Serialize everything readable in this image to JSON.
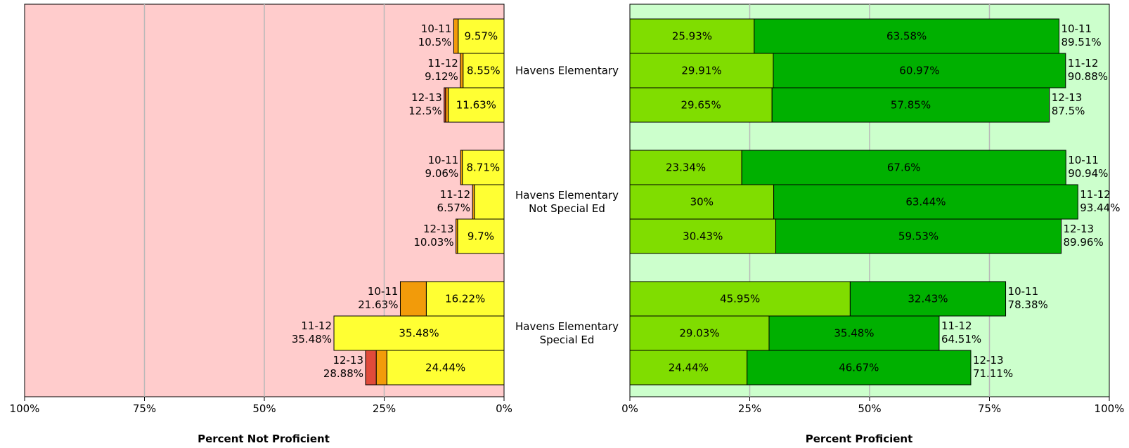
{
  "chart_data": [
    {
      "type": "bar",
      "orientation": "horizontal",
      "stacked": true,
      "direction": "right-to-left",
      "xlabel": "Percent Not Proficient",
      "xlim": [
        0,
        100
      ],
      "xticks": [
        "100%",
        "75%",
        "50%",
        "25%",
        "0%"
      ],
      "background": "#ffcccc",
      "grid": true,
      "segment_colors": [
        "#ffff33",
        "#f29b0a",
        "#e04a3a"
      ],
      "groups": [
        "Havens Elementary",
        "Havens Elementary Not Special Ed",
        "Havens Elementary Special Ed"
      ],
      "bars": [
        {
          "group": 0,
          "year": "10-11",
          "total": "10.5%",
          "segments": [
            9.57,
            0.93,
            0
          ],
          "inside_label": "9.57%"
        },
        {
          "group": 0,
          "year": "11-12",
          "total": "9.12%",
          "segments": [
            8.55,
            0.57,
            0
          ],
          "inside_label": "8.55%"
        },
        {
          "group": 0,
          "year": "12-13",
          "total": "12.5%",
          "segments": [
            11.63,
            0.57,
            0.3
          ],
          "inside_label": "11.63%"
        },
        {
          "group": 1,
          "year": "10-11",
          "total": "9.06%",
          "segments": [
            8.71,
            0.35,
            0
          ],
          "inside_label": "8.71%"
        },
        {
          "group": 1,
          "year": "11-12",
          "total": "6.57%",
          "segments": [
            6.2,
            0.37,
            0
          ],
          "inside_label": ""
        },
        {
          "group": 1,
          "year": "12-13",
          "total": "10.03%",
          "segments": [
            9.7,
            0.33,
            0
          ],
          "inside_label": "9.7%"
        },
        {
          "group": 2,
          "year": "10-11",
          "total": "21.63%",
          "segments": [
            16.22,
            5.41,
            0
          ],
          "inside_label": "16.22%"
        },
        {
          "group": 2,
          "year": "11-12",
          "total": "35.48%",
          "segments": [
            35.48,
            0,
            0
          ],
          "inside_label": "35.48%"
        },
        {
          "group": 2,
          "year": "12-13",
          "total": "28.88%",
          "segments": [
            24.44,
            2.22,
            2.22
          ],
          "inside_label": "24.44%"
        }
      ]
    },
    {
      "type": "bar",
      "orientation": "horizontal",
      "stacked": true,
      "direction": "left-to-right",
      "xlabel": "Percent Proficient",
      "xlim": [
        0,
        100
      ],
      "xticks": [
        "0%",
        "25%",
        "50%",
        "75%",
        "100%"
      ],
      "background": "#ccffcc",
      "grid": true,
      "segment_colors": [
        "#80dd00",
        "#00b000"
      ],
      "groups": [
        "Havens Elementary",
        "Havens Elementary Not Special Ed",
        "Havens Elementary Special Ed"
      ],
      "bars": [
        {
          "group": 0,
          "year": "10-11",
          "total": "89.51%",
          "segments": [
            25.93,
            63.58
          ],
          "labels": [
            "25.93%",
            "63.58%"
          ]
        },
        {
          "group": 0,
          "year": "11-12",
          "total": "90.88%",
          "segments": [
            29.91,
            60.97
          ],
          "labels": [
            "29.91%",
            "60.97%"
          ]
        },
        {
          "group": 0,
          "year": "12-13",
          "total": "87.5%",
          "segments": [
            29.65,
            57.85
          ],
          "labels": [
            "29.65%",
            "57.85%"
          ]
        },
        {
          "group": 1,
          "year": "10-11",
          "total": "90.94%",
          "segments": [
            23.34,
            67.6
          ],
          "labels": [
            "23.34%",
            "67.6%"
          ]
        },
        {
          "group": 1,
          "year": "11-12",
          "total": "93.44%",
          "segments": [
            30,
            63.44
          ],
          "labels": [
            "30%",
            "63.44%"
          ]
        },
        {
          "group": 1,
          "year": "12-13",
          "total": "89.96%",
          "segments": [
            30.43,
            59.53
          ],
          "labels": [
            "30.43%",
            "59.53%"
          ]
        },
        {
          "group": 2,
          "year": "10-11",
          "total": "78.38%",
          "segments": [
            45.95,
            32.43
          ],
          "labels": [
            "45.95%",
            "32.43%"
          ]
        },
        {
          "group": 2,
          "year": "11-12",
          "total": "64.51%",
          "segments": [
            29.03,
            35.48
          ],
          "labels": [
            "29.03%",
            "35.48%"
          ]
        },
        {
          "group": 2,
          "year": "12-13",
          "total": "71.11%",
          "segments": [
            24.44,
            46.67
          ],
          "labels": [
            "24.44%",
            "46.67%"
          ]
        }
      ]
    }
  ],
  "group_labels": [
    [
      "Havens Elementary"
    ],
    [
      "Havens Elementary",
      "Not Special Ed"
    ],
    [
      "Havens Elementary",
      "Special Ed"
    ]
  ]
}
